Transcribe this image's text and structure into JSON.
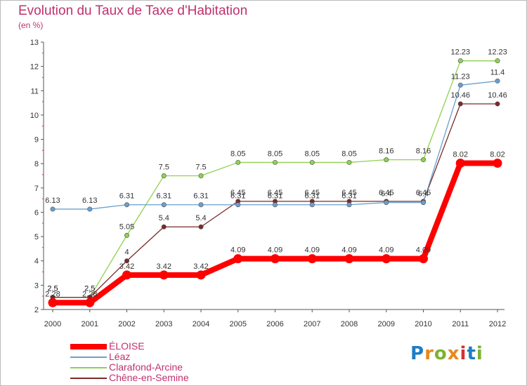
{
  "title": "Evolution du Taux de Taxe d'Habitation",
  "subtitle": "(en %)",
  "logo": {
    "text": "Proxiti",
    "colors": [
      "#1f7dc4",
      "#e8891c",
      "#7ab32e",
      "#e8891c",
      "#d62f2f",
      "#1f7dc4",
      "#7ab32e"
    ]
  },
  "chart_data": {
    "type": "line",
    "x": [
      "2000",
      "2001",
      "2002",
      "2003",
      "2004",
      "2005",
      "2006",
      "2007",
      "2008",
      "2009",
      "2010",
      "2011",
      "2012"
    ],
    "ylim": [
      2,
      13
    ],
    "yticks": [
      2,
      3,
      4,
      5,
      6,
      7,
      8,
      9,
      10,
      11,
      12,
      13
    ],
    "grid": false,
    "legend_position": "bottom-left",
    "series": [
      {
        "name": "ÉLOISE",
        "color": "#ff0000",
        "stroke": 8,
        "values": [
          2.28,
          2.28,
          3.42,
          3.42,
          3.42,
          4.09,
          4.09,
          4.09,
          4.09,
          4.09,
          4.09,
          8.02,
          8.02
        ],
        "labels": [
          "2.28",
          "2.28",
          "3.42",
          "3.42",
          "3.42",
          "4.09",
          "4.09",
          "4.09",
          "4.09",
          "4.09",
          "4.09",
          "8.02",
          "8.02"
        ]
      },
      {
        "name": "Léaz",
        "color": "#6a9fcf",
        "stroke": 1.3,
        "values": [
          6.13,
          6.13,
          6.31,
          6.31,
          6.31,
          6.31,
          6.31,
          6.31,
          6.31,
          6.4,
          6.4,
          11.23,
          11.4
        ],
        "labels": [
          "6.13",
          "6.13",
          "6.31",
          "6.31",
          "6.31",
          "6.31",
          "6.31",
          "6.31",
          "6.31",
          "6.4",
          "6.4",
          "11.23",
          "11.4"
        ]
      },
      {
        "name": "Clarafond-Arcine",
        "color": "#8fd14f",
        "stroke": 1.3,
        "values": [
          2.5,
          2.5,
          5.05,
          7.5,
          7.5,
          8.05,
          8.05,
          8.05,
          8.05,
          8.16,
          8.16,
          12.23,
          12.23
        ],
        "labels": [
          "2.5",
          "2.5",
          "5.05",
          "7.5",
          "7.5",
          "8.05",
          "8.05",
          "8.05",
          "8.05",
          "8.16",
          "8.16",
          "12.23",
          "12.23"
        ]
      },
      {
        "name": "Chêne-en-Semine",
        "color": "#7a2a2a",
        "stroke": 1.3,
        "values": [
          2.5,
          2.5,
          4,
          5.4,
          5.4,
          6.45,
          6.45,
          6.45,
          6.45,
          6.45,
          6.45,
          10.46,
          10.46
        ],
        "labels": [
          "2.5",
          "2.5",
          "4",
          "5.4",
          "5.4",
          "6.45",
          "6.45",
          "6.45",
          "6.45",
          "6.45",
          "6.45",
          "10.46",
          "10.46"
        ]
      }
    ]
  }
}
